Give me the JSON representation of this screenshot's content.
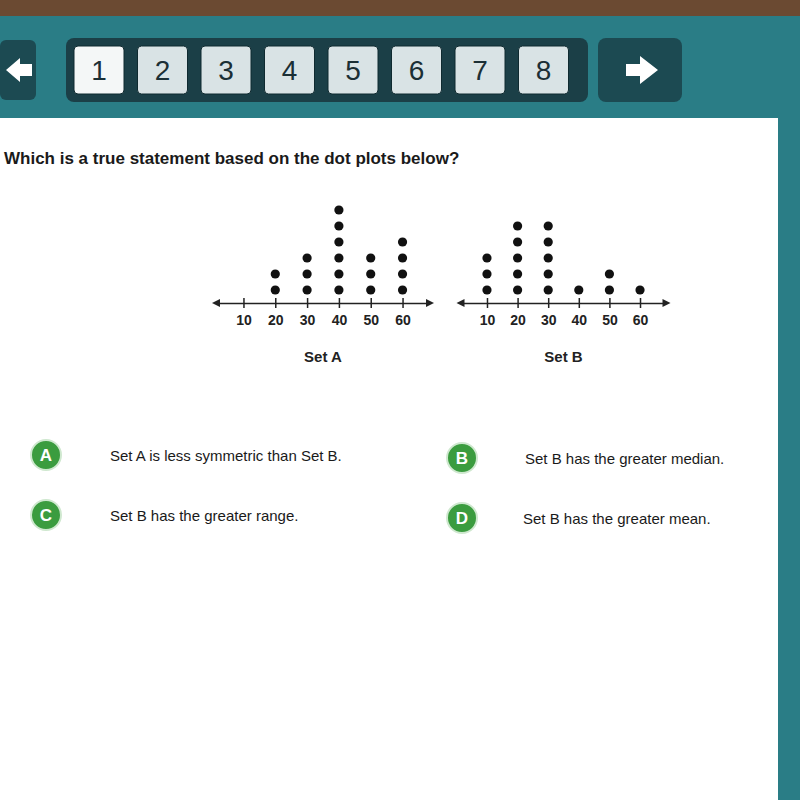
{
  "nav": {
    "pages": [
      "1",
      "2",
      "3",
      "4",
      "5",
      "6",
      "7",
      "8"
    ]
  },
  "question": "Which is a true statement based on the dot plots below?",
  "chart_data": [
    {
      "type": "dot",
      "title": "Set A",
      "x": [
        20,
        30,
        40,
        50,
        60
      ],
      "values": [
        2,
        3,
        6,
        3,
        4
      ],
      "xlim": [
        2,
        68
      ],
      "xticks": [
        10,
        20,
        30,
        40,
        50,
        60
      ],
      "tick_labels": "x",
      "color": "#111111"
    },
    {
      "type": "dot",
      "title": "Set B",
      "x": [
        10,
        20,
        30,
        40,
        50,
        60
      ],
      "values": [
        3,
        5,
        5,
        1,
        2,
        1
      ],
      "xlim": [
        2,
        68
      ],
      "xticks": [
        10,
        20,
        30,
        40,
        50,
        60
      ],
      "tick_labels": "x",
      "color": "#111111"
    }
  ],
  "options": [
    {
      "letter": "A",
      "text": "Set A is less symmetric than Set B."
    },
    {
      "letter": "B",
      "text": "Set B has the greater median."
    },
    {
      "letter": "C",
      "text": "Set B has the greater range."
    },
    {
      "letter": "D",
      "text": "Set B has the greater mean."
    }
  ]
}
